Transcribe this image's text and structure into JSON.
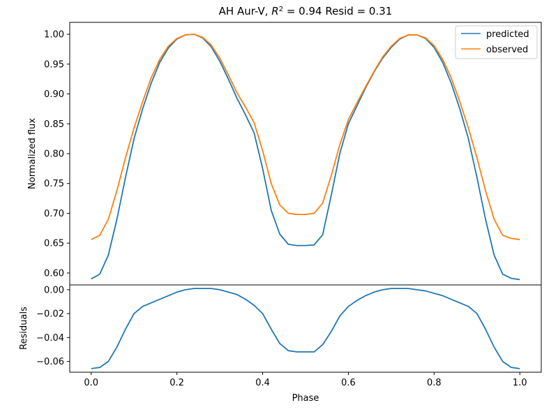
{
  "chart_data": {
    "type": "line",
    "title_prefix": "AH Aur-V, ",
    "title_r": "R",
    "title_sup": "2",
    "title_suffix": " = 0.94 Resid = 0.31",
    "xlabel": "Phase",
    "top_panel": {
      "ylabel": "Normalized flux",
      "ylim": [
        0.58,
        1.02
      ],
      "yticks": [
        "0.60",
        "0.65",
        "0.70",
        "0.75",
        "0.80",
        "0.85",
        "0.90",
        "0.95",
        "1.00"
      ],
      "series": [
        {
          "name": "predicted",
          "color": "#1f77b4",
          "x": [
            0,
            0.02,
            0.04,
            0.06,
            0.08,
            0.1,
            0.12,
            0.14,
            0.16,
            0.18,
            0.2,
            0.22,
            0.24,
            0.26,
            0.28,
            0.3,
            0.32,
            0.34,
            0.36,
            0.38,
            0.4,
            0.42,
            0.44,
            0.46,
            0.48,
            0.5,
            0.52,
            0.54,
            0.56,
            0.58,
            0.6,
            0.62,
            0.64,
            0.66,
            0.68,
            0.7,
            0.72,
            0.74,
            0.76,
            0.78,
            0.8,
            0.82,
            0.84,
            0.86,
            0.88,
            0.9,
            0.92,
            0.94,
            0.96,
            0.98,
            1.0
          ],
          "y": [
            0.59,
            0.598,
            0.63,
            0.69,
            0.76,
            0.825,
            0.875,
            0.918,
            0.953,
            0.977,
            0.992,
            0.999,
            1.0,
            0.994,
            0.979,
            0.955,
            0.925,
            0.893,
            0.865,
            0.835,
            0.775,
            0.705,
            0.665,
            0.648,
            0.646,
            0.646,
            0.647,
            0.664,
            0.73,
            0.8,
            0.85,
            0.88,
            0.91,
            0.937,
            0.96,
            0.978,
            0.992,
            0.999,
            0.999,
            0.993,
            0.978,
            0.953,
            0.918,
            0.875,
            0.825,
            0.76,
            0.69,
            0.63,
            0.598,
            0.591,
            0.589
          ]
        },
        {
          "name": "observed",
          "color": "#ff7f0e",
          "x": [
            0,
            0.02,
            0.04,
            0.06,
            0.08,
            0.1,
            0.12,
            0.14,
            0.16,
            0.18,
            0.2,
            0.22,
            0.24,
            0.26,
            0.28,
            0.3,
            0.32,
            0.34,
            0.36,
            0.38,
            0.4,
            0.42,
            0.44,
            0.46,
            0.48,
            0.5,
            0.52,
            0.54,
            0.56,
            0.58,
            0.6,
            0.62,
            0.64,
            0.66,
            0.68,
            0.7,
            0.72,
            0.74,
            0.76,
            0.78,
            0.8,
            0.82,
            0.84,
            0.86,
            0.88,
            0.9,
            0.92,
            0.94,
            0.96,
            0.98,
            1.0
          ],
          "y": [
            0.656,
            0.663,
            0.69,
            0.738,
            0.793,
            0.843,
            0.887,
            0.927,
            0.958,
            0.98,
            0.993,
            0.999,
            1.0,
            0.995,
            0.982,
            0.96,
            0.932,
            0.902,
            0.878,
            0.852,
            0.805,
            0.75,
            0.714,
            0.7,
            0.698,
            0.698,
            0.7,
            0.717,
            0.763,
            0.815,
            0.857,
            0.885,
            0.912,
            0.938,
            0.962,
            0.98,
            0.993,
            0.999,
            0.999,
            0.994,
            0.981,
            0.958,
            0.927,
            0.887,
            0.843,
            0.793,
            0.738,
            0.69,
            0.663,
            0.658,
            0.656
          ]
        }
      ],
      "legend_placement": "top-right"
    },
    "bottom_panel": {
      "ylabel": "Residuals",
      "ylim": [
        -0.069,
        0.004
      ],
      "yticks": [
        "0.00",
        "−0.02",
        "−0.04",
        "−0.06"
      ],
      "ytick_values": [
        0.0,
        -0.02,
        -0.04,
        -0.06
      ],
      "series": [
        {
          "name": "residuals",
          "color": "#1f77b4",
          "x": [
            0,
            0.02,
            0.04,
            0.06,
            0.08,
            0.1,
            0.12,
            0.14,
            0.16,
            0.18,
            0.2,
            0.22,
            0.24,
            0.26,
            0.28,
            0.3,
            0.32,
            0.34,
            0.36,
            0.38,
            0.4,
            0.42,
            0.44,
            0.46,
            0.48,
            0.5,
            0.52,
            0.54,
            0.56,
            0.58,
            0.6,
            0.62,
            0.64,
            0.66,
            0.68,
            0.7,
            0.72,
            0.74,
            0.76,
            0.78,
            0.8,
            0.82,
            0.84,
            0.86,
            0.88,
            0.9,
            0.92,
            0.94,
            0.96,
            0.98,
            1.0
          ],
          "y": [
            -0.066,
            -0.065,
            -0.06,
            -0.048,
            -0.033,
            -0.02,
            -0.014,
            -0.011,
            -0.008,
            -0.005,
            -0.002,
            0.0,
            0.001,
            0.001,
            0.001,
            0.0,
            -0.002,
            -0.004,
            -0.008,
            -0.013,
            -0.02,
            -0.033,
            -0.045,
            -0.051,
            -0.052,
            -0.052,
            -0.052,
            -0.046,
            -0.035,
            -0.022,
            -0.014,
            -0.009,
            -0.005,
            -0.002,
            0.0,
            0.001,
            0.001,
            0.001,
            0.0,
            -0.001,
            -0.003,
            -0.005,
            -0.008,
            -0.011,
            -0.014,
            -0.02,
            -0.033,
            -0.048,
            -0.06,
            -0.065,
            -0.066
          ]
        }
      ]
    },
    "xlim": [
      -0.05,
      1.05
    ],
    "xticks": [
      "0.0",
      "0.2",
      "0.4",
      "0.6",
      "0.8",
      "1.0"
    ],
    "xtick_values": [
      0.0,
      0.2,
      0.4,
      0.6,
      0.8,
      1.0
    ],
    "grid": false
  }
}
